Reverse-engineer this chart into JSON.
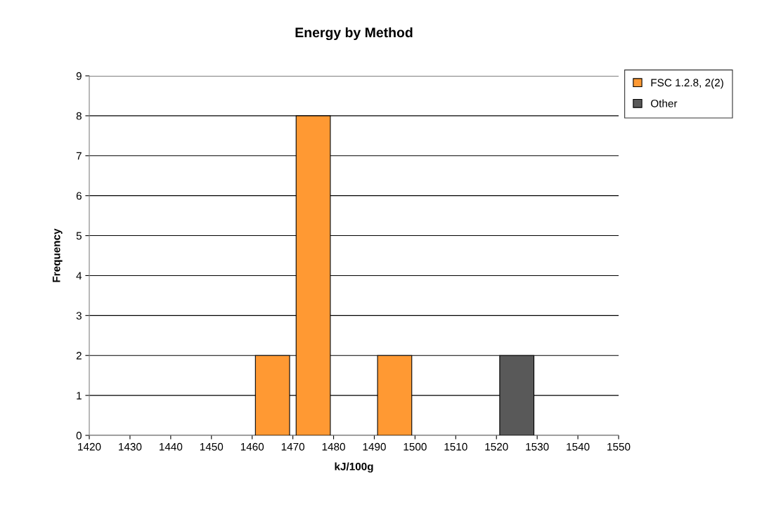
{
  "chart_data": {
    "type": "histogram",
    "title": "Energy by Method",
    "xlabel": "kJ/100g",
    "ylabel": "Frequency",
    "bins": [
      1420,
      1430,
      1440,
      1450,
      1460,
      1470,
      1480,
      1490,
      1500,
      1510,
      1520,
      1530,
      1540,
      1550
    ],
    "series": [
      {
        "name": "FSC 1.2.8, 2(2)",
        "color": "#ff9933",
        "values": [
          null,
          null,
          null,
          null,
          2,
          8,
          null,
          2,
          null,
          null,
          null,
          null,
          null
        ]
      },
      {
        "name": "Other",
        "color": "#595959",
        "values": [
          null,
          null,
          null,
          null,
          null,
          null,
          null,
          null,
          null,
          null,
          2,
          null,
          null
        ]
      }
    ],
    "xlim": [
      1420,
      1550
    ],
    "xticks": [
      1420,
      1430,
      1440,
      1450,
      1460,
      1470,
      1480,
      1490,
      1500,
      1510,
      1520,
      1530,
      1540,
      1550
    ],
    "ylim": [
      0,
      9
    ],
    "yticks": [
      0,
      1,
      2,
      3,
      4,
      5,
      6,
      7,
      8,
      9
    ],
    "grid": "y",
    "legend": "top right"
  }
}
